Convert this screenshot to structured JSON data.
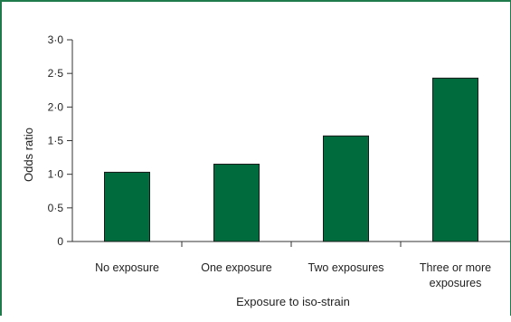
{
  "chart_data": {
    "type": "bar",
    "categories": [
      [
        "No exposure"
      ],
      [
        "One exposure"
      ],
      [
        "Two exposures"
      ],
      [
        "Three or more",
        "exposures"
      ]
    ],
    "values": [
      1.03,
      1.15,
      1.57,
      2.43
    ],
    "ylim": [
      0,
      3.0
    ],
    "yticks": [
      "0",
      "0·5",
      "1·0",
      "1·5",
      "2·0",
      "2·5",
      "3·0"
    ],
    "ytick_values": [
      0,
      0.5,
      1.0,
      1.5,
      2.0,
      2.5,
      3.0
    ],
    "ylabel": "Odds ratio",
    "xlabel": "Exposure to iso-strain",
    "bar_color": "#006b3c",
    "frame_color": "#1f7a4c",
    "grid": false
  }
}
